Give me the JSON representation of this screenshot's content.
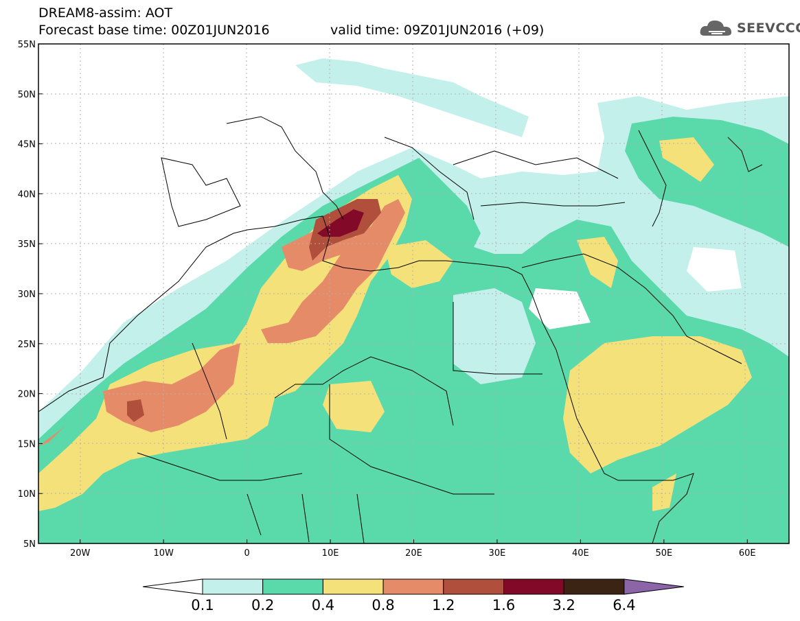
{
  "header": {
    "line1": "DREAM8-assim: AOT",
    "line2": "Forecast base time: 00Z01JUN2016",
    "line3": "valid time: 09Z01JUN2016 (+09)",
    "logo_text": "SEEVCCC",
    "logo_icon": "cloud-icon"
  },
  "map": {
    "lon_range": [
      -25,
      65
    ],
    "lat_range": [
      5,
      55
    ],
    "lat_labels": [
      "55N",
      "50N",
      "45N",
      "40N",
      "35N",
      "30N",
      "25N",
      "20N",
      "15N",
      "10N",
      "5N"
    ],
    "lon_labels": [
      "20W",
      "10W",
      "0",
      "10E",
      "20E",
      "30E",
      "40E",
      "50E",
      "60E"
    ],
    "grid": true
  },
  "colorbar": {
    "levels": [
      "0.1",
      "0.2",
      "0.4",
      "0.8",
      "1.2",
      "1.6",
      "3.2",
      "6.4"
    ],
    "colors": [
      "#ffffff",
      "#c4f0ec",
      "#5ad9ab",
      "#f5e17a",
      "#e68b68",
      "#b0503c",
      "#820a28",
      "#3c2414",
      "#8c64a8"
    ]
  }
}
